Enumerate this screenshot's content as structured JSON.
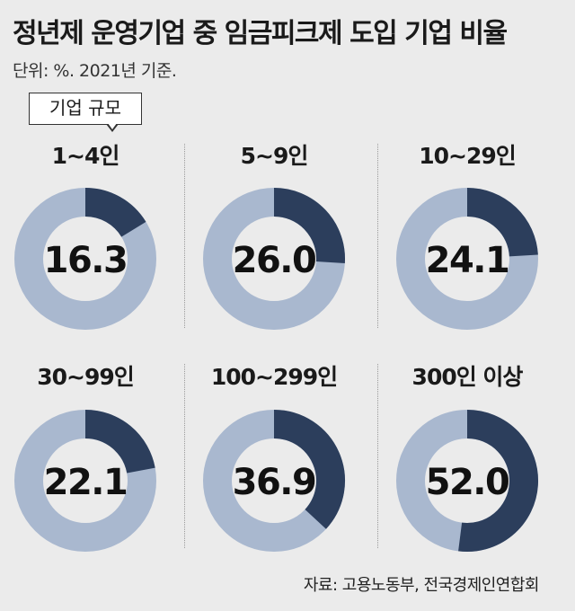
{
  "title": "정년제 운영기업 중 임금피크제 도입 기업 비율",
  "unit_note": "단위: %. 2021년 기준.",
  "callout": "기업 규모",
  "source": "자료: 고용노동부, 전국경제인연합회",
  "colors": {
    "filled": "#2c3e5c",
    "remaining": "#a9b8cf",
    "background": "#ebebeb"
  },
  "chart_data": {
    "type": "pie",
    "variant": "donut",
    "title": "정년제 운영기업 중 임금피크제 도입 기업 비율",
    "unit": "%",
    "categories": [
      "1~4인",
      "5~9인",
      "10~29인",
      "30~99인",
      "100~299인",
      "300인 이상"
    ],
    "values": [
      16.3,
      26.0,
      24.1,
      22.1,
      36.9,
      52.0
    ],
    "value_labels": [
      "16.3",
      "26.0",
      "24.1",
      "22.1",
      "36.9",
      "52.0"
    ],
    "max": 100
  }
}
